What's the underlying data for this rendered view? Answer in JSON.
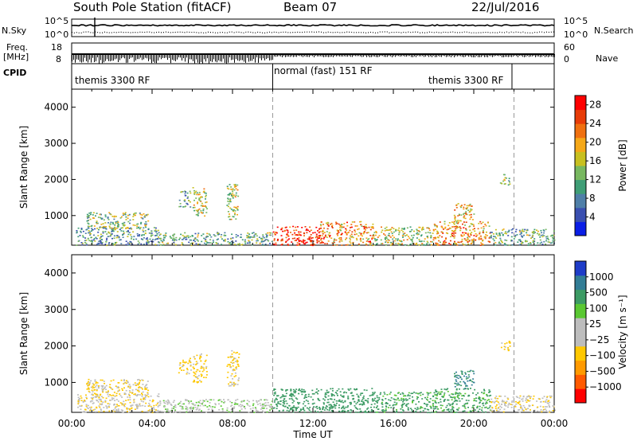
{
  "header": {
    "station": "South Pole Station (fitACF)",
    "beam": "Beam 07",
    "date": "22/Jul/2016"
  },
  "top_panels": {
    "nsky_label": "N.Sky",
    "nsearch_label": "N.Search",
    "freq_label_1": "Freq.",
    "freq_label_2": "[MHz]",
    "nave_label": "Nave",
    "cpid_label": "CPID",
    "noise_ticks": [
      "10^5",
      "10^0"
    ],
    "freq_ticks": [
      "18",
      "8"
    ],
    "nave_ticks": [
      "60",
      "0"
    ],
    "cpid_segments": [
      "themis 3300 RF",
      "normal (fast) 151 RF",
      "themis 3300 RF"
    ]
  },
  "colors": {
    "power_scale": [
      "#0a1ee6",
      "#3a4fb0",
      "#4f7fa8",
      "#3f9e76",
      "#78b860",
      "#c8c020",
      "#f5a818",
      "#f07010",
      "#e83c08",
      "#ff0000"
    ],
    "velocity_scale": [
      "#ff0000",
      "#ff5a00",
      "#ff9a00",
      "#ffc800",
      "#bdbdbd",
      "#bdbdbd",
      "#5ac832",
      "#3c9b64",
      "#327d96",
      "#1e3cc8"
    ]
  },
  "chart_data": [
    {
      "type": "heatmap",
      "name": "power",
      "ylabel": "Slant Range [km]",
      "yticks": [
        "1000",
        "2000",
        "3000",
        "4000"
      ],
      "ylim": [
        180,
        4500
      ],
      "xlim_hours": [
        0,
        24
      ],
      "colorbar_label": "Power [dB]",
      "colorbar_ticks": [
        "4",
        "8",
        "12",
        "16",
        "20",
        "24",
        "28"
      ],
      "colorbar_range": [
        0,
        30
      ],
      "dashed_lines_hours": [
        10,
        22
      ],
      "patches": [
        {
          "t0": 0.2,
          "t1": 4.3,
          "r0": 190,
          "r1": 700,
          "mean": 10
        },
        {
          "t0": 0.7,
          "t1": 3.8,
          "r0": 650,
          "r1": 1100,
          "mean": 13
        },
        {
          "t0": 5.3,
          "t1": 5.9,
          "r0": 1250,
          "r1": 1700,
          "mean": 10
        },
        {
          "t0": 6.0,
          "t1": 6.7,
          "r0": 1000,
          "r1": 1800,
          "mean": 16
        },
        {
          "t0": 7.7,
          "t1": 8.3,
          "r0": 900,
          "r1": 1900,
          "mean": 16
        },
        {
          "t0": 4.2,
          "t1": 10.0,
          "r0": 190,
          "r1": 550,
          "mean": 12
        },
        {
          "t0": 10.0,
          "t1": 12.3,
          "r0": 190,
          "r1": 720,
          "mean": 27
        },
        {
          "t0": 12.3,
          "t1": 15.0,
          "r0": 190,
          "r1": 850,
          "mean": 21
        },
        {
          "t0": 15.0,
          "t1": 18.0,
          "r0": 190,
          "r1": 700,
          "mean": 16
        },
        {
          "t0": 18.0,
          "t1": 20.8,
          "r0": 190,
          "r1": 850,
          "mean": 21
        },
        {
          "t0": 19.0,
          "t1": 20.0,
          "r0": 850,
          "r1": 1350,
          "mean": 19
        },
        {
          "t0": 20.8,
          "t1": 24.0,
          "r0": 190,
          "r1": 650,
          "mean": 12
        },
        {
          "t0": 21.3,
          "t1": 21.8,
          "r0": 1850,
          "r1": 2150,
          "mean": 12
        }
      ]
    },
    {
      "type": "heatmap",
      "name": "velocity",
      "ylabel": "Slant Range [km]",
      "yticks": [
        "1000",
        "2000",
        "3000",
        "4000"
      ],
      "ylim": [
        180,
        4500
      ],
      "xlim_hours": [
        0,
        24
      ],
      "xticks": [
        "00:00",
        "04:00",
        "08:00",
        "12:00",
        "16:00",
        "20:00",
        "00:00"
      ],
      "xlabel": "Time UT",
      "colorbar_label": "Velocity [m s⁻¹]",
      "colorbar_ticks": [
        "1000",
        "500",
        "100",
        "25",
        "−25",
        "−100",
        "−500",
        "−1000"
      ],
      "dashed_lines_hours": [
        10,
        22
      ],
      "patches": [
        {
          "t0": 0.2,
          "t1": 4.3,
          "r0": 190,
          "r1": 700,
          "mean": -80
        },
        {
          "t0": 0.7,
          "t1": 3.8,
          "r0": 650,
          "r1": 1100,
          "mean": -120
        },
        {
          "t0": 5.3,
          "t1": 5.9,
          "r0": 1250,
          "r1": 1700,
          "mean": -150
        },
        {
          "t0": 6.0,
          "t1": 6.7,
          "r0": 1000,
          "r1": 1800,
          "mean": -150
        },
        {
          "t0": 7.7,
          "t1": 8.3,
          "r0": 900,
          "r1": 1900,
          "mean": -150
        },
        {
          "t0": 4.2,
          "t1": 10.0,
          "r0": 190,
          "r1": 550,
          "mean": 0
        },
        {
          "t0": 10.0,
          "t1": 12.3,
          "r0": 190,
          "r1": 850,
          "mean": 250
        },
        {
          "t0": 12.3,
          "t1": 15.0,
          "r0": 190,
          "r1": 850,
          "mean": 250
        },
        {
          "t0": 15.0,
          "t1": 18.0,
          "r0": 190,
          "r1": 750,
          "mean": 150
        },
        {
          "t0": 18.0,
          "t1": 20.8,
          "r0": 190,
          "r1": 850,
          "mean": 150
        },
        {
          "t0": 19.0,
          "t1": 20.0,
          "r0": 850,
          "r1": 1350,
          "mean": 500
        },
        {
          "t0": 20.8,
          "t1": 24.0,
          "r0": 190,
          "r1": 650,
          "mean": -80
        },
        {
          "t0": 21.3,
          "t1": 21.8,
          "r0": 1850,
          "r1": 2150,
          "mean": -150
        }
      ]
    }
  ]
}
